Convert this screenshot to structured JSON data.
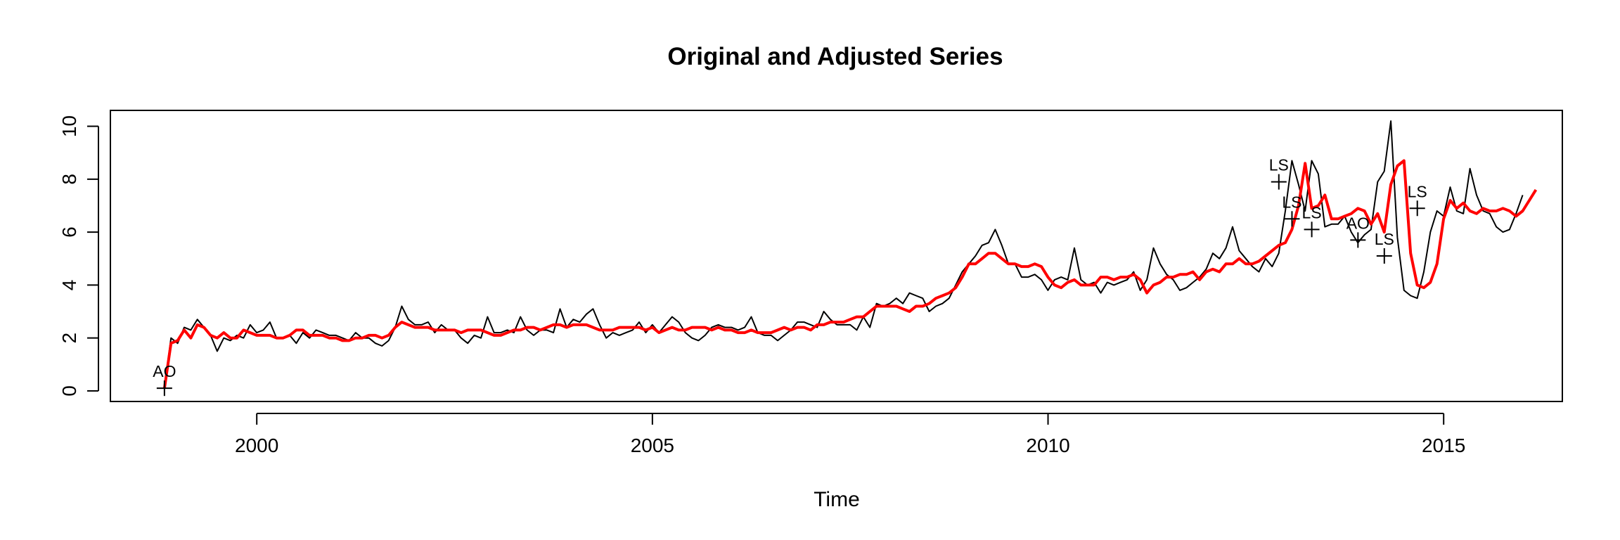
{
  "chart_data": {
    "type": "line",
    "title": "Original and Adjusted Series",
    "xlabel": "Time",
    "ylabel": "",
    "xlim": [
      1998.15,
      2016.5
    ],
    "ylim": [
      -0.4,
      10.6
    ],
    "xticks": [
      2000,
      2005,
      2010,
      2015
    ],
    "yticks": [
      0,
      2,
      4,
      6,
      8,
      10
    ],
    "grid": false,
    "legend": "none",
    "start": 1998.833,
    "step": 0.08333,
    "series": [
      {
        "color": "#000000",
        "values": [
          0.1,
          2.0,
          1.8,
          2.4,
          2.3,
          2.7,
          2.4,
          2.1,
          1.5,
          2.0,
          1.9,
          2.1,
          2.0,
          2.5,
          2.2,
          2.3,
          2.6,
          2.0,
          2.0,
          2.1,
          1.8,
          2.2,
          2.0,
          2.3,
          2.2,
          2.1,
          2.1,
          2.0,
          1.9,
          2.2,
          2.0,
          2.0,
          1.8,
          1.7,
          1.9,
          2.4,
          3.2,
          2.7,
          2.5,
          2.5,
          2.6,
          2.2,
          2.5,
          2.3,
          2.3,
          2.0,
          1.8,
          2.1,
          2.0,
          2.8,
          2.2,
          2.2,
          2.3,
          2.2,
          2.8,
          2.3,
          2.1,
          2.3,
          2.3,
          2.2,
          3.1,
          2.4,
          2.7,
          2.6,
          2.9,
          3.1,
          2.5,
          2.0,
          2.2,
          2.1,
          2.2,
          2.3,
          2.6,
          2.2,
          2.5,
          2.2,
          2.5,
          2.8,
          2.6,
          2.2,
          2.0,
          1.9,
          2.1,
          2.4,
          2.5,
          2.4,
          2.4,
          2.3,
          2.4,
          2.8,
          2.2,
          2.1,
          2.1,
          1.9,
          2.1,
          2.3,
          2.6,
          2.6,
          2.5,
          2.4,
          3.0,
          2.7,
          2.5,
          2.5,
          2.5,
          2.3,
          2.8,
          2.4,
          3.3,
          3.2,
          3.3,
          3.5,
          3.3,
          3.7,
          3.6,
          3.5,
          3.0,
          3.2,
          3.3,
          3.5,
          4.0,
          4.5,
          4.8,
          5.1,
          5.5,
          5.6,
          6.1,
          5.5,
          4.8,
          4.8,
          4.3,
          4.3,
          4.4,
          4.2,
          3.8,
          4.2,
          4.3,
          4.2,
          5.4,
          4.2,
          4.0,
          4.1,
          3.7,
          4.1,
          4.0,
          4.1,
          4.2,
          4.5,
          3.8,
          4.2,
          5.4,
          4.8,
          4.4,
          4.2,
          3.8,
          3.9,
          4.1,
          4.3,
          4.6,
          5.2,
          5.0,
          5.4,
          6.2,
          5.3,
          5.0,
          4.7,
          4.5,
          5.0,
          4.7,
          5.2,
          6.8,
          8.7,
          7.8,
          6.8,
          8.7,
          8.2,
          6.2,
          6.3,
          6.3,
          6.6,
          6.0,
          5.6,
          5.9,
          6.1,
          7.9,
          8.3,
          10.2,
          5.8,
          3.8,
          3.6,
          3.5,
          4.5,
          6.0,
          6.8,
          6.6,
          7.7,
          6.8,
          6.7,
          8.4,
          7.4,
          6.8,
          6.7,
          6.2,
          6.0,
          6.1,
          6.7,
          7.4
        ]
      },
      {
        "color": "#ff0000",
        "values": [
          0.1,
          1.8,
          1.9,
          2.3,
          2.0,
          2.5,
          2.4,
          2.1,
          2.0,
          2.2,
          2.0,
          2.0,
          2.3,
          2.2,
          2.1,
          2.1,
          2.1,
          2.0,
          2.0,
          2.1,
          2.3,
          2.3,
          2.1,
          2.1,
          2.1,
          2.0,
          2.0,
          1.9,
          1.9,
          2.0,
          2.0,
          2.1,
          2.1,
          2.0,
          2.1,
          2.4,
          2.6,
          2.5,
          2.4,
          2.4,
          2.4,
          2.3,
          2.3,
          2.3,
          2.3,
          2.2,
          2.3,
          2.3,
          2.3,
          2.2,
          2.1,
          2.1,
          2.2,
          2.3,
          2.3,
          2.4,
          2.4,
          2.3,
          2.4,
          2.5,
          2.5,
          2.4,
          2.5,
          2.5,
          2.5,
          2.4,
          2.3,
          2.3,
          2.3,
          2.4,
          2.4,
          2.4,
          2.4,
          2.3,
          2.4,
          2.2,
          2.3,
          2.4,
          2.3,
          2.3,
          2.4,
          2.4,
          2.4,
          2.3,
          2.4,
          2.3,
          2.3,
          2.2,
          2.2,
          2.3,
          2.2,
          2.2,
          2.2,
          2.3,
          2.4,
          2.3,
          2.4,
          2.4,
          2.3,
          2.5,
          2.5,
          2.6,
          2.6,
          2.6,
          2.7,
          2.8,
          2.8,
          3.0,
          3.2,
          3.2,
          3.2,
          3.2,
          3.1,
          3.0,
          3.2,
          3.2,
          3.3,
          3.5,
          3.6,
          3.7,
          3.9,
          4.3,
          4.8,
          4.8,
          5.0,
          5.2,
          5.2,
          5.0,
          4.8,
          4.8,
          4.7,
          4.7,
          4.8,
          4.7,
          4.3,
          4.0,
          3.9,
          4.1,
          4.2,
          4.0,
          4.0,
          4.0,
          4.3,
          4.3,
          4.2,
          4.3,
          4.3,
          4.4,
          4.2,
          3.7,
          4.0,
          4.1,
          4.3,
          4.3,
          4.4,
          4.4,
          4.5,
          4.2,
          4.5,
          4.6,
          4.5,
          4.8,
          4.8,
          5.0,
          4.8,
          4.8,
          4.9,
          5.1,
          5.3,
          5.5,
          5.6,
          6.1,
          7.0,
          8.6,
          6.9,
          7.0,
          7.4,
          6.5,
          6.5,
          6.6,
          6.7,
          6.9,
          6.8,
          6.3,
          6.7,
          6.0,
          7.8,
          8.5,
          8.7,
          5.2,
          4.0,
          3.9,
          4.1,
          4.8,
          6.5,
          7.2,
          6.9,
          7.1,
          6.8,
          6.7,
          6.9,
          6.8,
          6.8,
          6.9,
          6.8,
          6.6,
          6.8,
          7.2,
          7.6
        ]
      }
    ],
    "annotations": [
      {
        "label": "AO",
        "x": 1998.833,
        "y": 0.1
      },
      {
        "label": "LS",
        "x": 2012.917,
        "y": 7.9
      },
      {
        "label": "LS",
        "x": 2013.083,
        "y": 6.5
      },
      {
        "label": "LS",
        "x": 2013.333,
        "y": 6.1
      },
      {
        "label": "AO",
        "x": 2013.917,
        "y": 5.7
      },
      {
        "label": "LS",
        "x": 2014.25,
        "y": 5.1
      },
      {
        "label": "LS",
        "x": 2014.667,
        "y": 6.9
      }
    ]
  }
}
